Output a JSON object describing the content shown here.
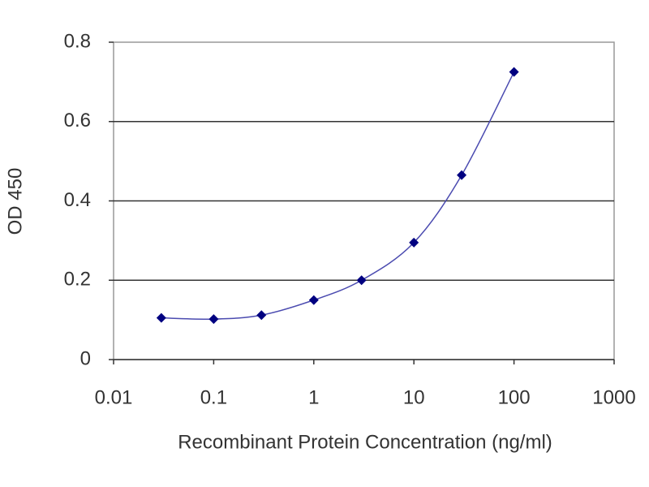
{
  "chart_data": {
    "type": "line",
    "x_label": "Recombinant Protein Concentration (ng/ml)",
    "y_label": "OD 450",
    "xscale": "log",
    "x": [
      0.03,
      0.1,
      0.3,
      1,
      3,
      10,
      30,
      100
    ],
    "series": [
      {
        "color": "#000080",
        "line_color": "#4b4bb0",
        "values": [
          0.105,
          0.102,
          0.112,
          0.15,
          0.2,
          0.295,
          0.465,
          0.725
        ]
      }
    ],
    "xlim": [
      0.01,
      1000
    ],
    "xticks": [
      0.01,
      0.1,
      1,
      10,
      100,
      1000
    ],
    "ylim": [
      0,
      0.8
    ],
    "yticks": [
      0,
      0.2,
      0.4,
      0.6,
      0.8
    ],
    "grid": true
  }
}
